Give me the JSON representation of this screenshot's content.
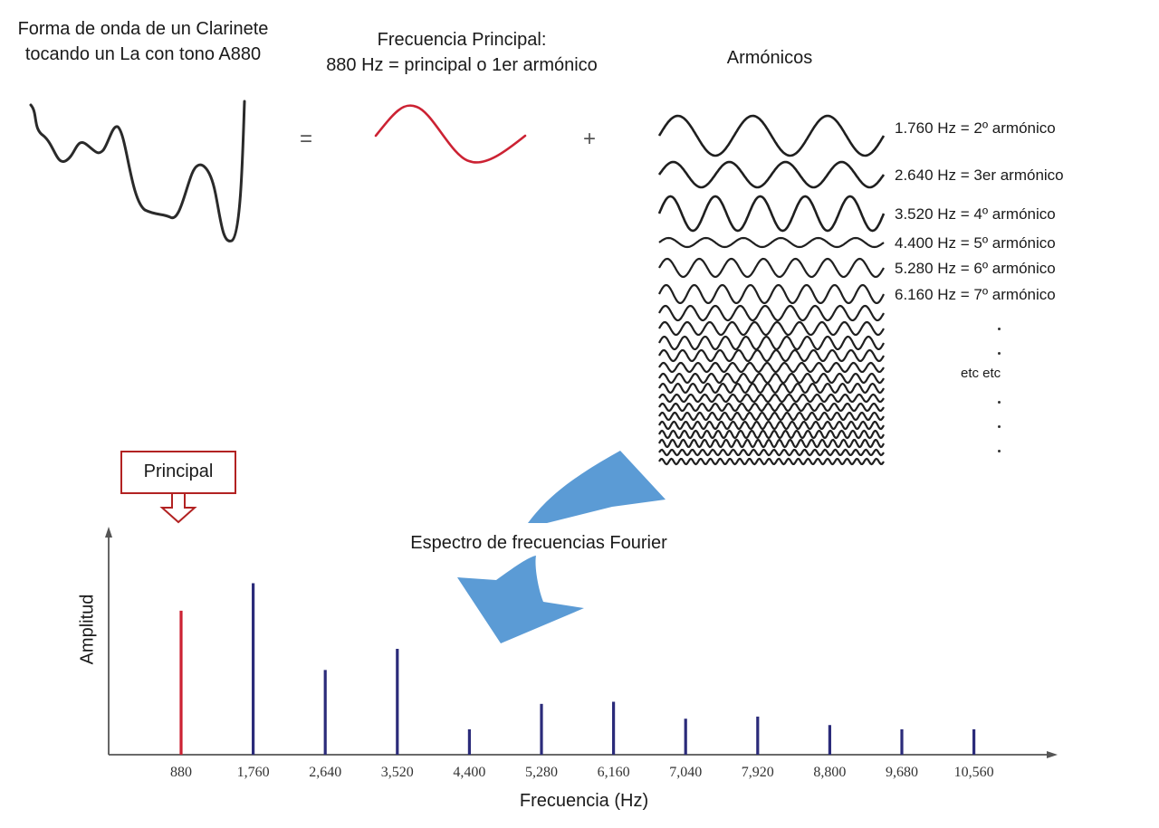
{
  "header": {
    "waveform_title": "Forma de onda de un Clarinete tocando un La con tono A880",
    "principal_title_line1": "Frecuencia Principal:",
    "principal_title_line2": "880 Hz = principal o 1er armónico",
    "harmonics_title": "Armónicos"
  },
  "operators": {
    "equals": "=",
    "plus": "+"
  },
  "harmonics": {
    "labels": [
      "1.760 Hz = 2º armónico",
      "2.640 Hz = 3er armónico",
      "3.520 Hz = 4º armónico",
      "4.400 Hz = 5º armónico",
      "5.280 Hz = 6º armónico",
      "6.160 Hz = 7º armónico"
    ],
    "etc": "etc etc"
  },
  "callout": {
    "label": "Principal",
    "color": "#b22222"
  },
  "arrow_color": "#5b9bd5",
  "chart_data": {
    "type": "bar",
    "title": "Espectro de frecuencias Fourier",
    "xlabel": "Frecuencia (Hz)",
    "ylabel": "Amplitud",
    "categories": [
      "880",
      "1,760",
      "2,640",
      "3,520",
      "4,400",
      "5,280",
      "6,160",
      "7,040",
      "7,920",
      "8,800",
      "9,680",
      "10,560"
    ],
    "values": [
      0.68,
      0.81,
      0.4,
      0.5,
      0.12,
      0.24,
      0.25,
      0.17,
      0.18,
      0.14,
      0.12,
      0.12
    ],
    "colors": [
      "#cc2233",
      "#2b2b7a",
      "#2b2b7a",
      "#2b2b7a",
      "#2b2b7a",
      "#2b2b7a",
      "#2b2b7a",
      "#2b2b7a",
      "#2b2b7a",
      "#2b2b7a",
      "#2b2b7a",
      "#2b2b7a"
    ],
    "ylim": [
      0,
      1
    ],
    "grid": false
  }
}
